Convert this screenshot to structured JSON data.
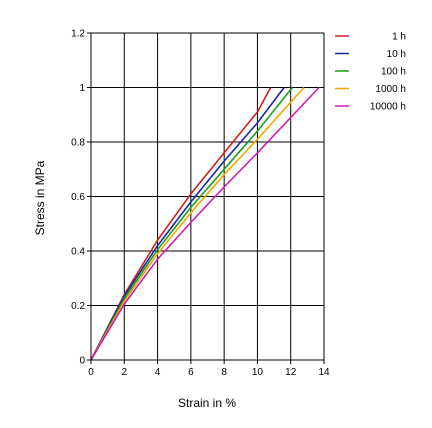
{
  "chart_data": {
    "type": "line",
    "xlabel": "Strain in %",
    "ylabel": "Stress in MPa",
    "xlim": [
      0,
      14
    ],
    "ylim": [
      0,
      1.2
    ],
    "xticks": [
      "0",
      "2",
      "4",
      "6",
      "8",
      "10",
      "12",
      "14"
    ],
    "yticks": [
      "0",
      "0.2",
      "0.4",
      "0.6",
      "0.8",
      "1",
      "1.2"
    ],
    "grid": true,
    "legend_position": "right",
    "series": [
      {
        "name": "1 h",
        "color": "#d02020",
        "points": [
          [
            0,
            0
          ],
          [
            2,
            0.24
          ],
          [
            4,
            0.44
          ],
          [
            6,
            0.61
          ],
          [
            8,
            0.76
          ],
          [
            10,
            0.91
          ],
          [
            10.8,
            1.0
          ]
        ]
      },
      {
        "name": "10 h",
        "color": "#1a2aa0",
        "points": [
          [
            0,
            0
          ],
          [
            2,
            0.235
          ],
          [
            4,
            0.42
          ],
          [
            6,
            0.58
          ],
          [
            8,
            0.73
          ],
          [
            10,
            0.87
          ],
          [
            11.6,
            1.0
          ]
        ]
      },
      {
        "name": "100 h",
        "color": "#1e9e1e",
        "points": [
          [
            0,
            0
          ],
          [
            2,
            0.225
          ],
          [
            4,
            0.405
          ],
          [
            6,
            0.56
          ],
          [
            8,
            0.7
          ],
          [
            10,
            0.84
          ],
          [
            12.1,
            1.0
          ]
        ]
      },
      {
        "name": "1000 h",
        "color": "#f0a800",
        "points": [
          [
            0,
            0
          ],
          [
            2,
            0.215
          ],
          [
            4,
            0.39
          ],
          [
            6,
            0.54
          ],
          [
            8,
            0.68
          ],
          [
            10,
            0.81
          ],
          [
            12.8,
            1.0
          ]
        ]
      },
      {
        "name": "10000 h",
        "color": "#d21ab4",
        "points": [
          [
            0,
            0
          ],
          [
            2,
            0.205
          ],
          [
            4,
            0.37
          ],
          [
            6,
            0.505
          ],
          [
            8,
            0.635
          ],
          [
            10,
            0.76
          ],
          [
            13.7,
            1.0
          ]
        ]
      }
    ]
  }
}
